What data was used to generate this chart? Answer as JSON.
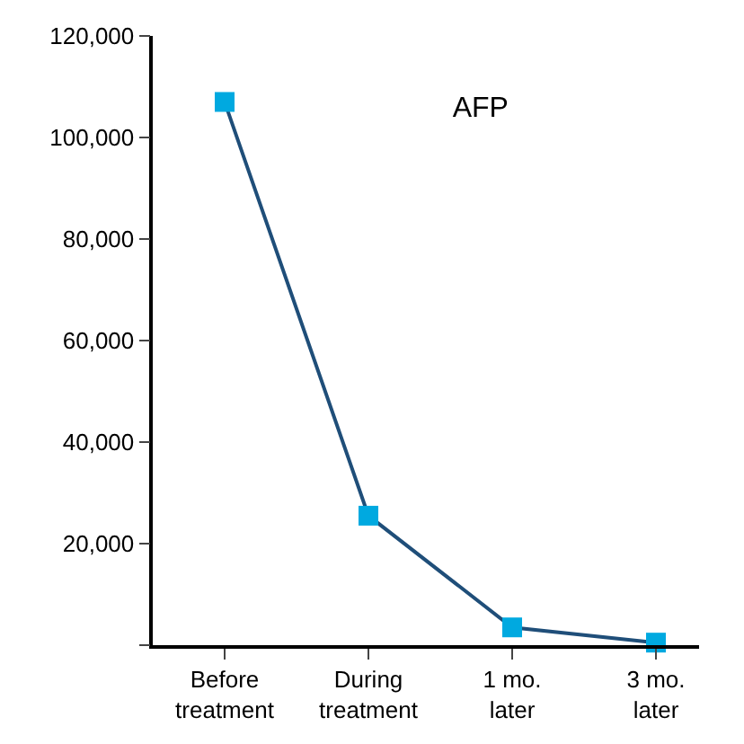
{
  "chart_data": {
    "type": "line",
    "title": "AFP",
    "categories": [
      "Before treatment",
      "During treatment",
      "1 mo. later",
      "3 mo. later"
    ],
    "series": [
      {
        "color": "#1f4e79",
        "colors": [
          "#00a9e0",
          "#00a9e0",
          "#00a9e0",
          "#00a9e0"
        ],
        "values": [
          107000,
          25500,
          3500,
          500
        ]
      }
    ],
    "ylim": [
      0,
      120000
    ],
    "yticks": [
      {
        "value": 0,
        "label": null
      },
      {
        "value": 20000,
        "label": "20,000"
      },
      {
        "value": 40000,
        "label": "40,000"
      },
      {
        "value": 60000,
        "label": "60,000"
      },
      {
        "value": 80000,
        "label": "80,000"
      },
      {
        "value": 100000,
        "label": "100,000"
      },
      {
        "value": 120000,
        "label": "120,000"
      }
    ],
    "legend": false,
    "marker": "square",
    "line_style": "solid"
  }
}
